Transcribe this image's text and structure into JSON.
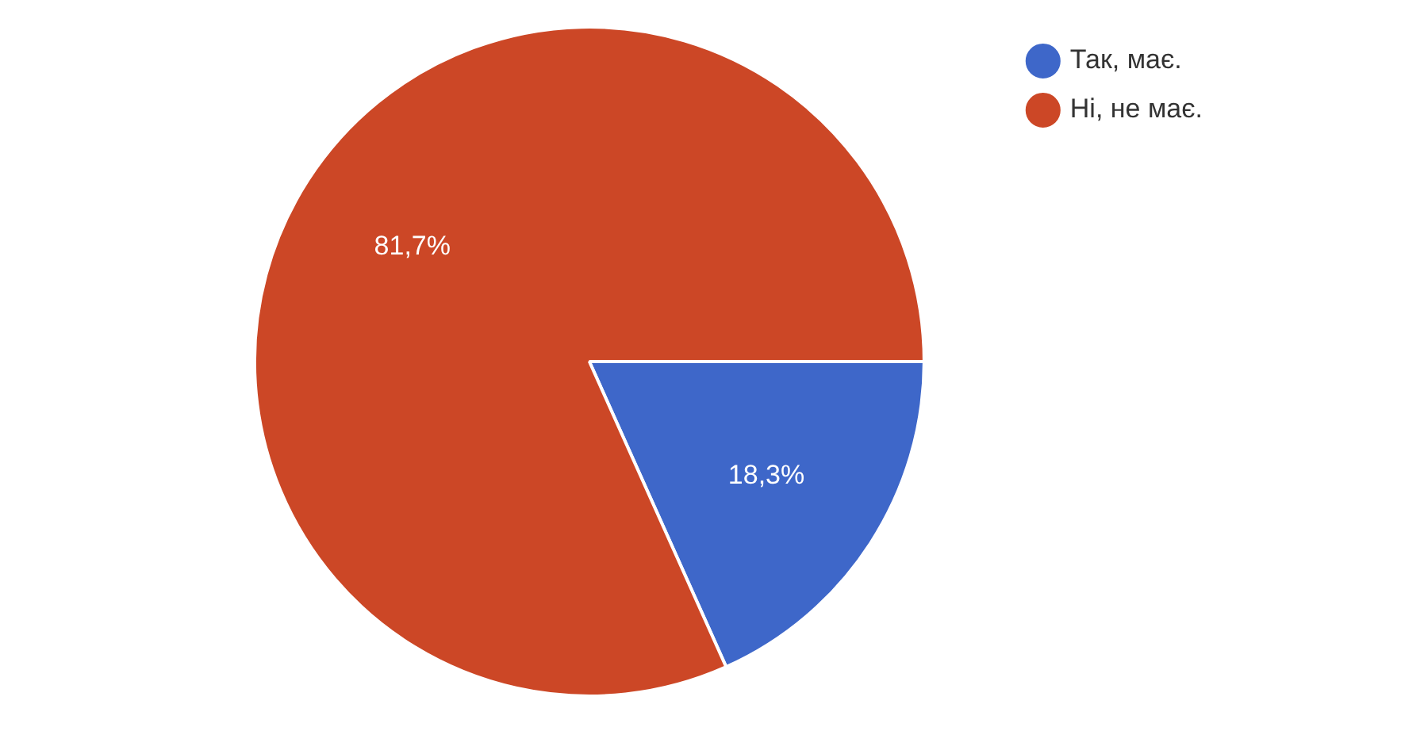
{
  "chart_data": {
    "type": "pie",
    "categories": [
      "Так, має.",
      "Ні, не має."
    ],
    "values": [
      18.3,
      81.7
    ],
    "colors": [
      "#3e67c9",
      "#cc4726"
    ],
    "value_labels": [
      "18,3%",
      "81,7%"
    ],
    "legend": "top right"
  }
}
